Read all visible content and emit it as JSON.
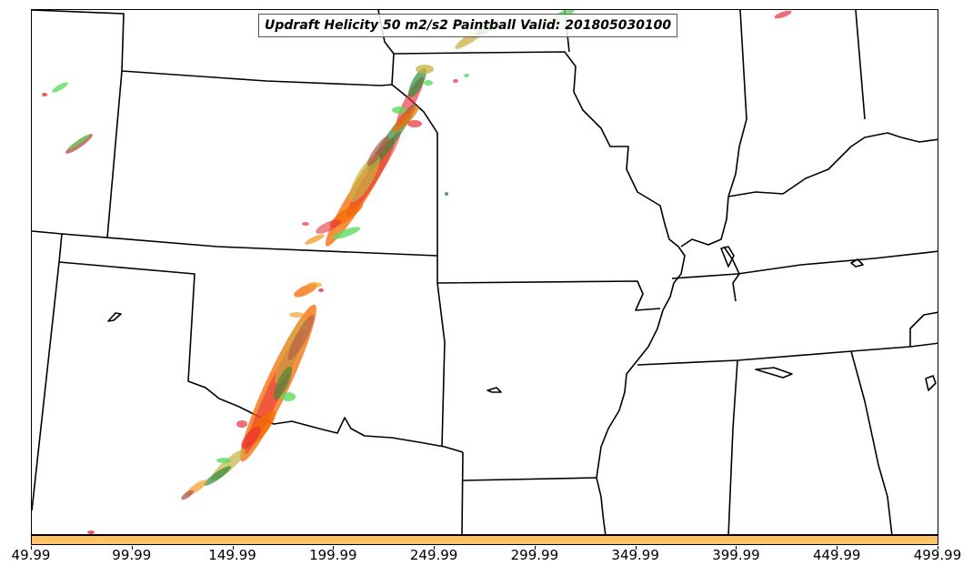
{
  "title": "Updraft Helicity 50 m2/s2 Paintball Valid: 201805030100",
  "colorbar": {
    "color": "#ffc267",
    "ticks": [
      "49.99",
      "99.99",
      "149.99",
      "199.99",
      "249.99",
      "299.99",
      "349.99",
      "399.99",
      "449.99",
      "499.99"
    ]
  },
  "colors": {
    "border": "#000000",
    "paint_red": "#e8303a",
    "paint_orange": "#f56a00",
    "paint_darkgreen": "#2e8b3a",
    "paint_lightgreen": "#5fdc5f",
    "paint_olive": "#c8b040",
    "paint_brown": "#b05a4a"
  }
}
